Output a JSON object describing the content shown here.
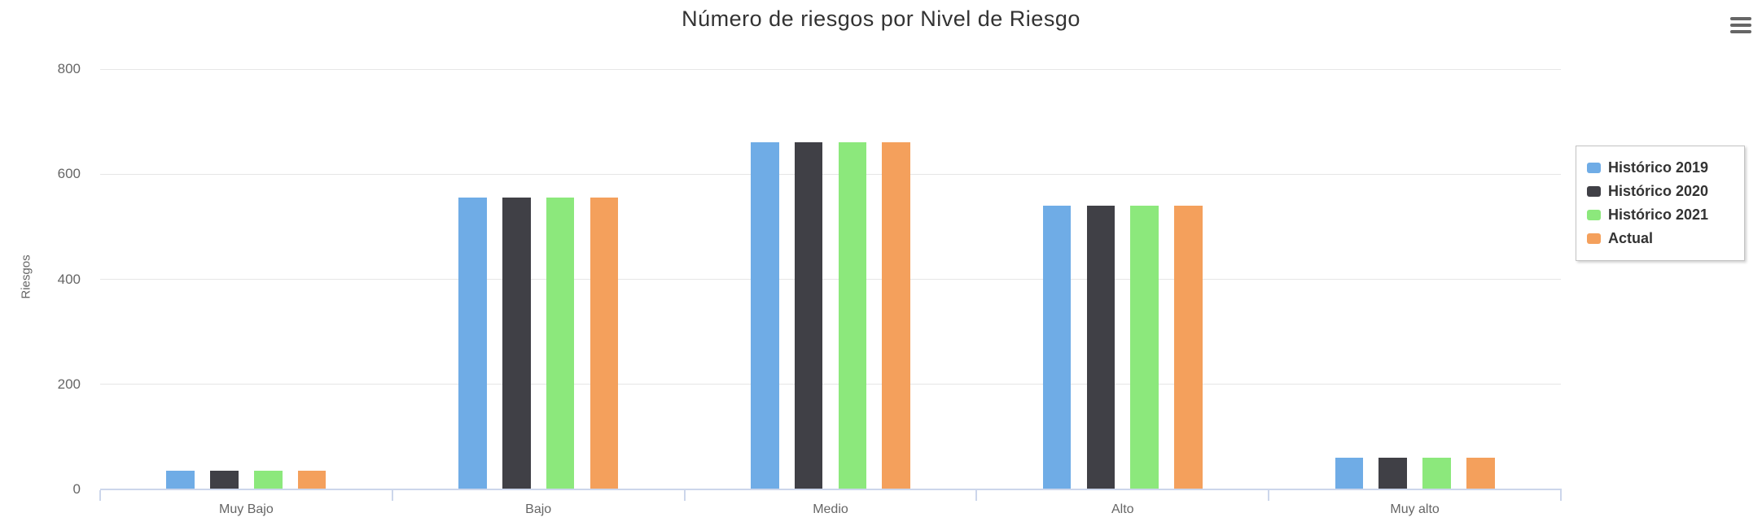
{
  "chart": {
    "menu_icon": "hamburger-menu-icon"
  },
  "chart_data": {
    "type": "bar",
    "title": "Número de riesgos por Nivel de Riesgo",
    "xlabel": "",
    "ylabel": "Riesgos",
    "categories": [
      "Muy Bajo",
      "Bajo",
      "Medio",
      "Alto",
      "Muy alto"
    ],
    "series": [
      {
        "name": "Histórico 2019",
        "color": "#6face6",
        "values": [
          35,
          555,
          660,
          540,
          60
        ]
      },
      {
        "name": "Histórico 2020",
        "color": "#404046",
        "values": [
          35,
          555,
          660,
          540,
          60
        ]
      },
      {
        "name": "Histórico 2021",
        "color": "#8ce87c",
        "values": [
          35,
          555,
          660,
          540,
          60
        ]
      },
      {
        "name": "Actual",
        "color": "#f4a05c",
        "values": [
          35,
          555,
          660,
          540,
          60
        ]
      }
    ],
    "ylim": [
      0,
      800
    ],
    "yticks": [
      0,
      200,
      400,
      600,
      800
    ],
    "grid": true,
    "legend_position": "right",
    "colors": {
      "grid_color": "#e6e6e6",
      "axis_line_color": "#ccd6eb",
      "title_color": "#333333",
      "axis_label_color": "#666666",
      "legend_text_color": "#333333",
      "menu_icon_color": "#666666"
    }
  }
}
